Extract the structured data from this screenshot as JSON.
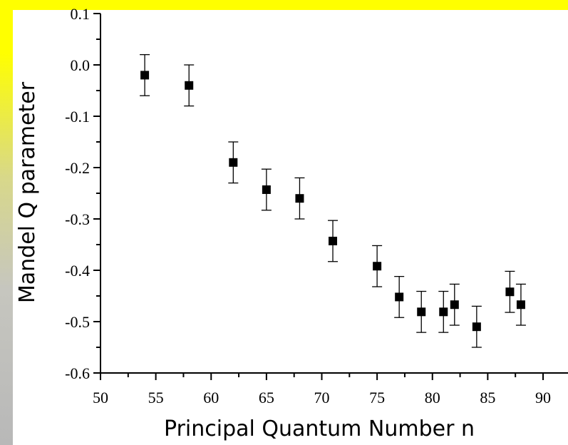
{
  "chart_data": {
    "type": "scatter",
    "title": "",
    "xlabel": "Principal Quantum Number n",
    "ylabel": "Mandel Q parameter",
    "xlim": [
      50,
      90
    ],
    "ylim": [
      -0.6,
      0.1
    ],
    "x_ticks": [
      "50",
      "55",
      "60",
      "65",
      "70",
      "75",
      "80",
      "85",
      "90"
    ],
    "y_ticks": [
      "0.1",
      "0.0",
      "-0.1",
      "-0.2",
      "-0.3",
      "-0.4",
      "-0.5",
      "-0.6"
    ],
    "x_tick_values": [
      50,
      55,
      60,
      65,
      70,
      75,
      80,
      85,
      90
    ],
    "y_tick_values": [
      0.1,
      0.0,
      -0.1,
      -0.2,
      -0.3,
      -0.4,
      -0.5,
      -0.6
    ],
    "grid": false,
    "marker": "square",
    "marker_color": "#000000",
    "error_bar_color": "#000000",
    "points": [
      {
        "x": 54,
        "y": -0.02,
        "err": 0.04
      },
      {
        "x": 58,
        "y": -0.04,
        "err": 0.04
      },
      {
        "x": 62,
        "y": -0.19,
        "err": 0.04
      },
      {
        "x": 65,
        "y": -0.243,
        "err": 0.04
      },
      {
        "x": 68,
        "y": -0.26,
        "err": 0.04
      },
      {
        "x": 71,
        "y": -0.343,
        "err": 0.04
      },
      {
        "x": 75,
        "y": -0.392,
        "err": 0.04
      },
      {
        "x": 77,
        "y": -0.452,
        "err": 0.04
      },
      {
        "x": 79,
        "y": -0.481,
        "err": 0.04
      },
      {
        "x": 81,
        "y": -0.481,
        "err": 0.04
      },
      {
        "x": 82,
        "y": -0.467,
        "err": 0.04
      },
      {
        "x": 84,
        "y": -0.51,
        "err": 0.04
      },
      {
        "x": 87,
        "y": -0.442,
        "err": 0.04
      },
      {
        "x": 88,
        "y": -0.467,
        "err": 0.04
      }
    ]
  },
  "decor": {
    "top_bar_color": "#ffff00",
    "side_bar_color": "#ffff00"
  }
}
